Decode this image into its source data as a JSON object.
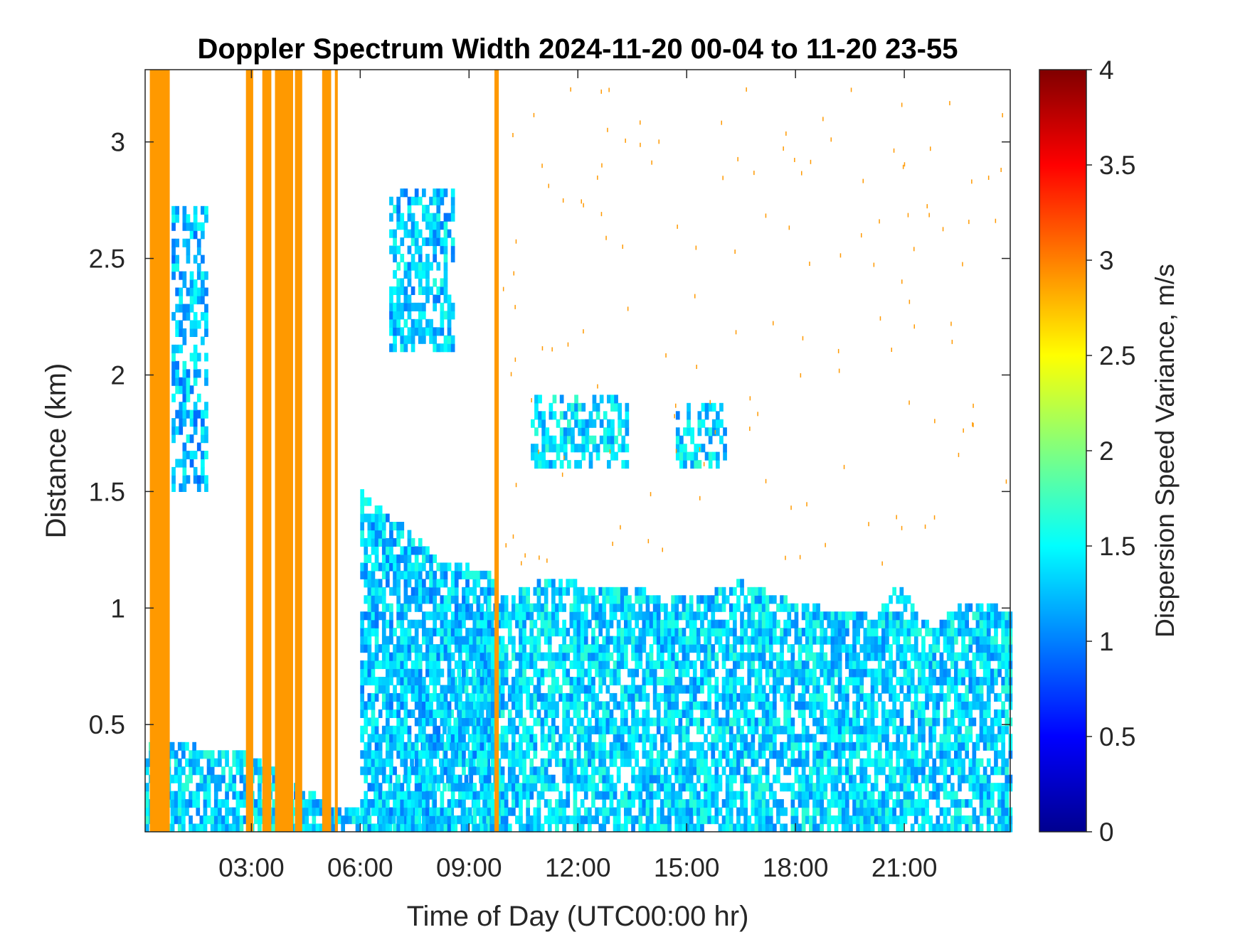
{
  "chart_data": {
    "type": "heatmap",
    "title": "Doppler Spectrum Width 2024-11-20 00-04 to 11-20 23-55",
    "xlabel": "Time of Day (UTC00:00 hr)",
    "ylabel": "Distance (km)",
    "xlim_hours": [
      0.07,
      23.92
    ],
    "ylim_km": [
      0.04,
      3.31
    ],
    "x_ticks": [
      {
        "hours": 3,
        "label": "03:00"
      },
      {
        "hours": 6,
        "label": "06:00"
      },
      {
        "hours": 9,
        "label": "09:00"
      },
      {
        "hours": 12,
        "label": "12:00"
      },
      {
        "hours": 15,
        "label": "15:00"
      },
      {
        "hours": 18,
        "label": "18:00"
      },
      {
        "hours": 21,
        "label": "21:00"
      }
    ],
    "y_ticks": [
      {
        "km": 0.5,
        "label": "0.5"
      },
      {
        "km": 1,
        "label": "1"
      },
      {
        "km": 1.5,
        "label": "1.5"
      },
      {
        "km": 2,
        "label": "2"
      },
      {
        "km": 2.5,
        "label": "2.5"
      },
      {
        "km": 3,
        "label": "3"
      }
    ],
    "colorbar": {
      "label": "Dispersion Speed Variance, m/s",
      "range": [
        0,
        4
      ],
      "colormap": "jet",
      "ticks": [
        {
          "value": 0,
          "label": "0"
        },
        {
          "value": 0.5,
          "label": "0.5"
        },
        {
          "value": 1,
          "label": "1"
        },
        {
          "value": 1.5,
          "label": "1.5"
        },
        {
          "value": 2,
          "label": "2"
        },
        {
          "value": 2.5,
          "label": "2.5"
        },
        {
          "value": 3,
          "label": "3"
        },
        {
          "value": 3.5,
          "label": "3.5"
        },
        {
          "value": 4,
          "label": "4"
        }
      ]
    },
    "saturated_columns": {
      "value": 2.9,
      "color": "#ff9900",
      "time_ranges_hours": [
        [
          0.2,
          0.75
        ],
        [
          2.85,
          3.05
        ],
        [
          3.3,
          3.55
        ],
        [
          3.65,
          4.15
        ],
        [
          4.2,
          4.4
        ],
        [
          4.95,
          5.2
        ],
        [
          5.3,
          5.38
        ],
        [
          9.7,
          9.82
        ]
      ]
    },
    "regions": [
      {
        "name": "surface layer",
        "t": [
          0.07,
          23.92
        ],
        "z_top_km": [
          [
            0.07,
            0.4
          ],
          [
            2.7,
            0.38
          ],
          [
            5.3,
            0.12
          ],
          [
            6.0,
            0.12
          ],
          [
            8.2,
            0.55
          ],
          [
            9.5,
            1.0
          ],
          [
            11,
            1.1
          ],
          [
            13,
            1.08
          ],
          [
            15,
            1.02
          ],
          [
            16.5,
            1.1
          ],
          [
            18,
            1.0
          ],
          [
            20,
            0.96
          ],
          [
            20.8,
            1.08
          ],
          [
            21.8,
            0.9
          ],
          [
            22.5,
            1.0
          ],
          [
            23.92,
            0.98
          ]
        ],
        "value": 1.35
      },
      {
        "name": "morning cloud band",
        "t": [
          6.0,
          9.6
        ],
        "z_top_km": [
          [
            5.8,
            1.5
          ],
          [
            7.0,
            1.35
          ],
          [
            8.2,
            1.2
          ],
          [
            9.6,
            1.12
          ]
        ],
        "value": 1.3
      },
      {
        "name": "upper cloud 11-13h",
        "t": [
          10.7,
          13.3
        ],
        "z_km": [
          1.6,
          1.9
        ],
        "value": 1.4
      },
      {
        "name": "upper cloud 14.7-16h",
        "t": [
          14.7,
          16.0
        ],
        "z_km": [
          1.6,
          1.85
        ],
        "value": 1.35
      },
      {
        "name": "cirrus plume",
        "t": [
          6.8,
          8.5
        ],
        "z_km": [
          2.1,
          2.8
        ],
        "value": 1.3
      },
      {
        "name": "night layer",
        "t": [
          0.8,
          1.8
        ],
        "z_km": [
          1.5,
          2.7
        ],
        "value": 1.25
      }
    ]
  }
}
